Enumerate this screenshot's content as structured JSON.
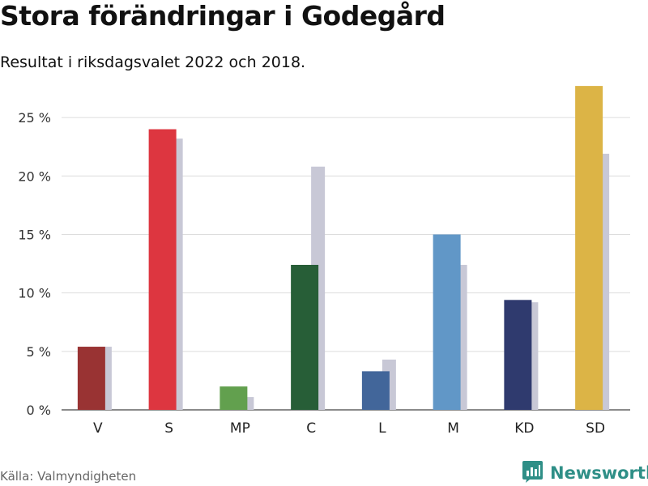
{
  "header": {
    "title": "Stora förändringar i Godegård",
    "subtitle": "Resultat i riksdagsvalet 2022 och 2018."
  },
  "footer": {
    "source": "Källa: Valmyndigheten",
    "brand": "Newsworthy",
    "brand_color": "#2f8f87",
    "brand_icon": "bar-chart-speech-bubble-icon"
  },
  "chart_data": {
    "type": "bar",
    "title": "Stora förändringar i Godegård",
    "subtitle": "Resultat i riksdagsvalet 2022 och 2018.",
    "xlabel": "",
    "ylabel": "",
    "ylim": [
      0,
      27.5
    ],
    "yticks": [
      0,
      5,
      10,
      15,
      20,
      25
    ],
    "ytick_suffix": " %",
    "grid": true,
    "legend": "none",
    "categories": [
      "V",
      "S",
      "MP",
      "C",
      "L",
      "M",
      "KD",
      "SD"
    ],
    "series": [
      {
        "name": "2022",
        "values": [
          5.4,
          24.0,
          2.0,
          12.4,
          3.3,
          15.0,
          9.4,
          27.7
        ],
        "colors": [
          "#993333",
          "#dd3640",
          "#62a04e",
          "#275e37",
          "#42669a",
          "#6197c7",
          "#2f3a6e",
          "#dcb446"
        ]
      },
      {
        "name": "2018",
        "values": [
          5.4,
          23.2,
          1.1,
          20.8,
          4.3,
          12.4,
          9.2,
          21.9
        ],
        "color": "#c8c8d6"
      }
    ]
  }
}
